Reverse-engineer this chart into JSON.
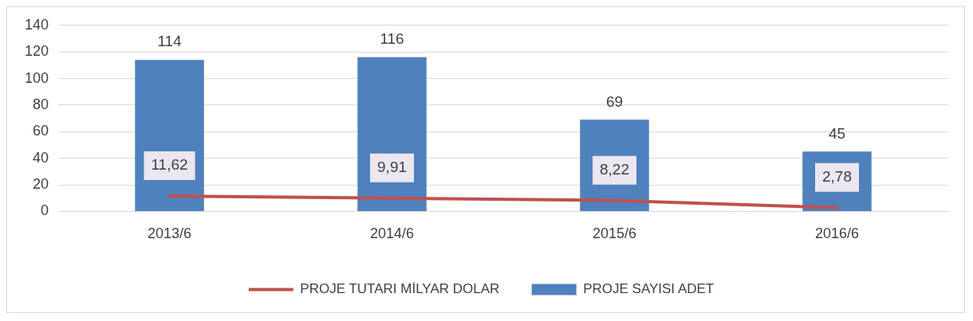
{
  "chart_data": {
    "type": "bar",
    "categories": [
      "2013/6",
      "2014/6",
      "2015/6",
      "2016/6"
    ],
    "series": [
      {
        "name": "PROJE SAYISI ADET",
        "color": "#4f81bd",
        "values": [
          114,
          116,
          69,
          45
        ],
        "value_labels": [
          "114",
          "116",
          "69",
          "45"
        ]
      },
      {
        "name": "PROJE TUTARI MİLYAR DOLAR",
        "type": "line",
        "color": "#c0504d",
        "values": [
          11.62,
          9.91,
          8.22,
          2.78
        ],
        "value_labels": [
          "11,62",
          "9,91",
          "8,22",
          "2,78"
        ]
      }
    ],
    "ylim": [
      0,
      140
    ],
    "yticks": [
      0,
      20,
      40,
      60,
      80,
      100,
      120,
      140
    ],
    "grid": "y",
    "legend": "bottom"
  }
}
